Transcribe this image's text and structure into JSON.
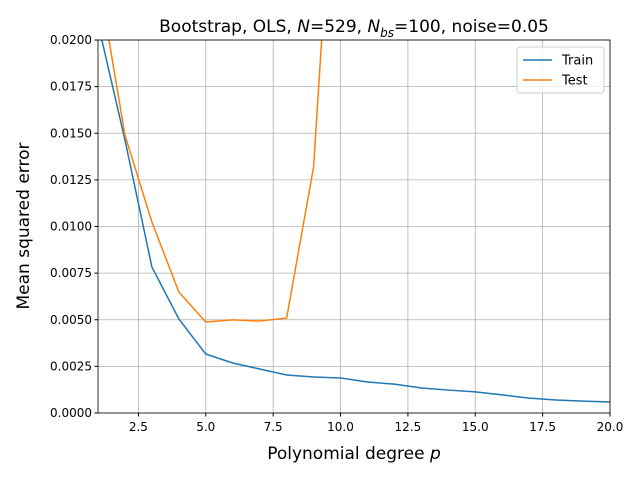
{
  "chart_data": {
    "type": "line",
    "title": [
      "Bootstrap, OLS, ",
      "N",
      "=529, ",
      "N",
      "bs",
      "=100, noise=0.05"
    ],
    "xlabel": [
      "Polynomial degree ",
      "p"
    ],
    "ylabel": "Mean squared error",
    "x": [
      1,
      2,
      3,
      4,
      5,
      6,
      7,
      8,
      9,
      10,
      11,
      12,
      13,
      14,
      15,
      16,
      17,
      18,
      19,
      20
    ],
    "series": [
      {
        "name": "Train",
        "color": "#1f77b4",
        "values": [
          0.0209,
          0.01464,
          0.00783,
          0.00504,
          0.00316,
          0.00268,
          0.00236,
          0.00204,
          0.00193,
          0.00188,
          0.00166,
          0.00155,
          0.00134,
          0.00123,
          0.00113,
          0.00097,
          0.0008,
          0.0007,
          0.00064,
          0.00059
        ]
      },
      {
        "name": "Test",
        "color": "#ff7f0e",
        "values": [
          0.0235,
          0.0149,
          0.01024,
          0.00649,
          0.00488,
          0.00499,
          0.00493,
          0.00509,
          0.01319,
          0.0359,
          null,
          null,
          null,
          null,
          null,
          null,
          null,
          null,
          null,
          null
        ]
      }
    ],
    "xlim": [
      1,
      20
    ],
    "xticks": [
      2.5,
      {
        "value": 5,
        "label": "5.0"
      },
      7.5,
      {
        "value": 10,
        "label": "10.0"
      },
      12.5,
      {
        "value": 15,
        "label": "15.0"
      },
      17.5,
      {
        "value": 20,
        "label": "20.0"
      }
    ],
    "ylim": [
      0,
      0.02
    ],
    "yticks": [
      {
        "value": 0,
        "label": "0.0000"
      },
      {
        "value": 0.0025,
        "label": "0.0025"
      },
      {
        "value": 0.005,
        "label": "0.0050"
      },
      {
        "value": 0.0075,
        "label": "0.0075"
      },
      {
        "value": 0.01,
        "label": "0.0100"
      },
      {
        "value": 0.0125,
        "label": "0.0125"
      },
      {
        "value": 0.015,
        "label": "0.0150"
      },
      {
        "value": 0.0175,
        "label": "0.0175"
      },
      {
        "value": 0.02,
        "label": "0.0200"
      }
    ],
    "grid": true,
    "legend": "upper right"
  }
}
